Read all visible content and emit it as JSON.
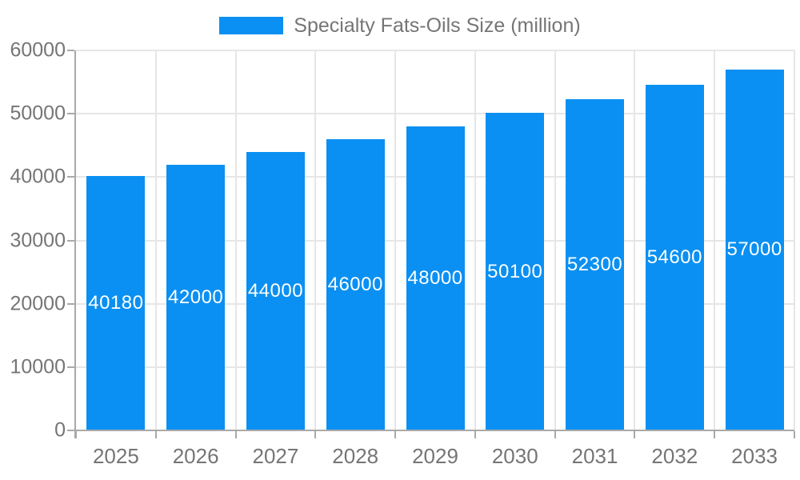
{
  "chart_data": {
    "type": "bar",
    "title": "Specialty Fats-Oils Size (million)",
    "categories": [
      "2025",
      "2026",
      "2027",
      "2028",
      "2029",
      "2030",
      "2031",
      "2032",
      "2033"
    ],
    "values": [
      40180,
      42000,
      44000,
      46000,
      48000,
      50100,
      52300,
      54600,
      57000
    ],
    "value_labels": [
      "40180",
      "42000",
      "44000",
      "46000",
      "48000",
      "50100",
      "52300",
      "54600",
      "57000"
    ],
    "xlabel": "",
    "ylabel": "",
    "ylim": [
      0,
      60000
    ],
    "yticks": [
      0,
      10000,
      20000,
      30000,
      40000,
      50000,
      60000
    ],
    "ytick_labels": [
      "0",
      "10000",
      "20000",
      "30000",
      "40000",
      "50000",
      "60000"
    ],
    "grid": true,
    "legend_position": "top",
    "legend_entries": [
      "Specialty Fats-Oils Size (million)"
    ]
  },
  "legend": {
    "label": "Specialty Fats-Oils Size (million)"
  },
  "colors": {
    "bar": "#0a90f2",
    "value_label": "#ffffff",
    "axis_text": "#757575",
    "grid_line": "#e6e6e6",
    "axis_line": "#a9a9a9"
  }
}
